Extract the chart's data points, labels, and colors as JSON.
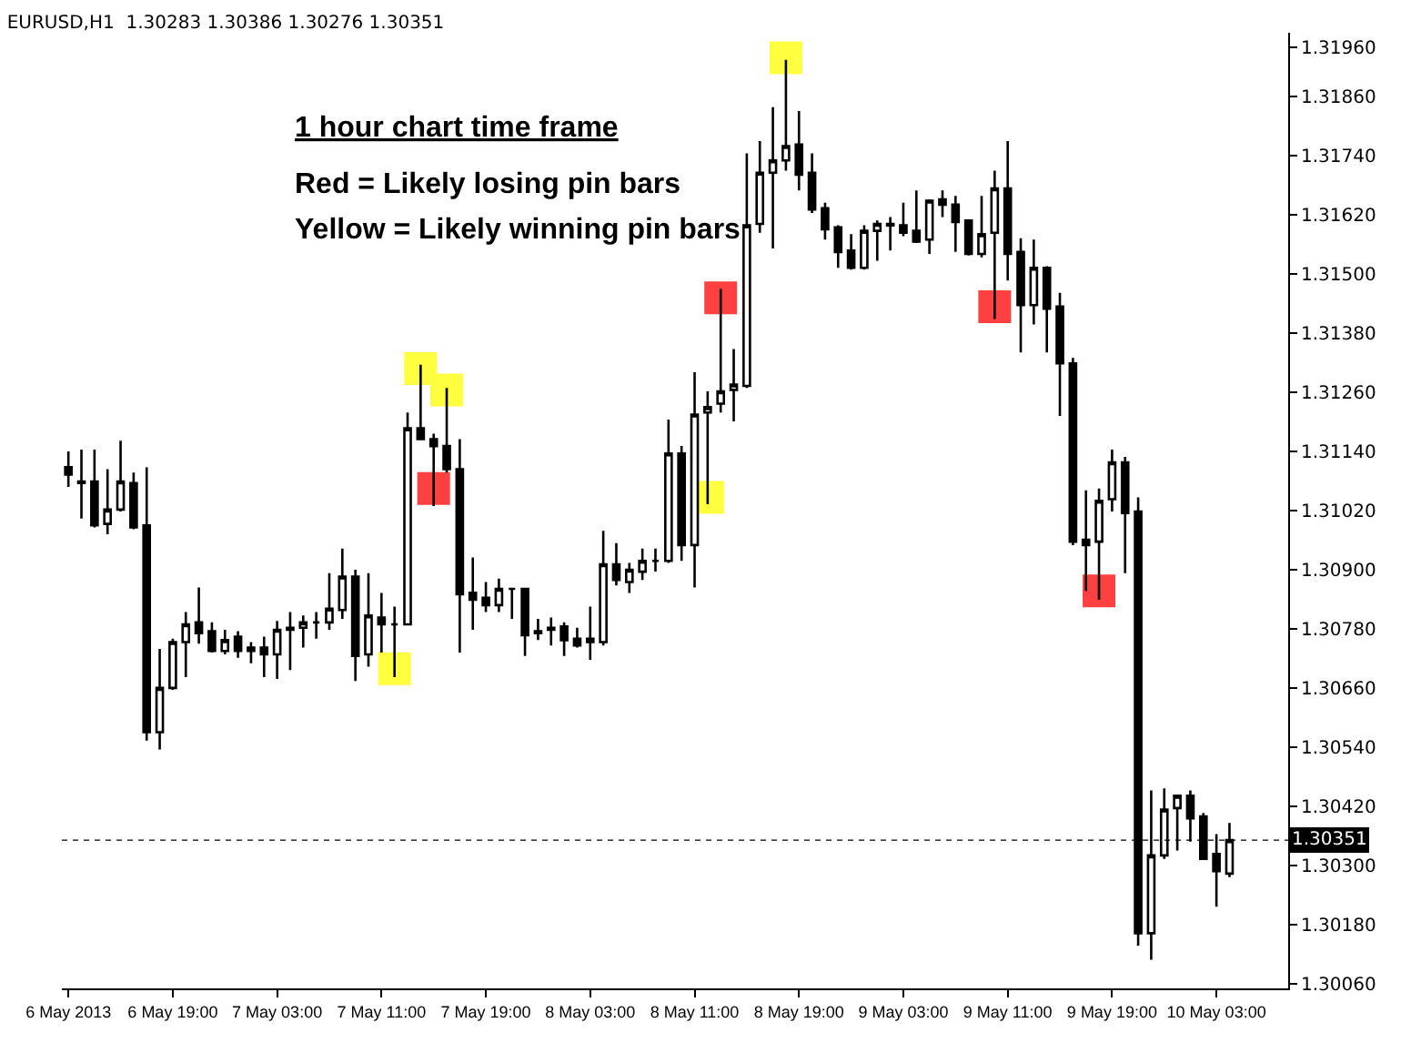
{
  "chart_data": {
    "type": "candlestick",
    "title": "EURUSD,H1  1.30283 1.30386 1.30276 1.30351",
    "annotations": [
      "1 hour chart time frame",
      "Red = Likely losing pin bars",
      "Yellow = Likely winning pin bars"
    ],
    "x": [
      "2013-05-06T11:00",
      "2013-05-06T12:00",
      "2013-05-06T13:00",
      "2013-05-06T14:00",
      "2013-05-06T15:00",
      "2013-05-06T16:00",
      "2013-05-06T17:00",
      "2013-05-06T18:00",
      "2013-05-06T19:00",
      "2013-05-06T20:00",
      "2013-05-06T21:00",
      "2013-05-06T22:00",
      "2013-05-06T23:00",
      "2013-05-07T00:00",
      "2013-05-07T01:00",
      "2013-05-07T02:00",
      "2013-05-07T03:00",
      "2013-05-07T04:00",
      "2013-05-07T05:00",
      "2013-05-07T06:00",
      "2013-05-07T07:00",
      "2013-05-07T08:00",
      "2013-05-07T09:00",
      "2013-05-07T10:00",
      "2013-05-07T11:00",
      "2013-05-07T12:00",
      "2013-05-07T13:00",
      "2013-05-07T14:00",
      "2013-05-07T15:00",
      "2013-05-07T16:00",
      "2013-05-07T17:00",
      "2013-05-07T18:00",
      "2013-05-07T19:00",
      "2013-05-07T20:00",
      "2013-05-07T21:00",
      "2013-05-07T22:00",
      "2013-05-07T23:00",
      "2013-05-08T00:00",
      "2013-05-08T01:00",
      "2013-05-08T02:00",
      "2013-05-08T03:00",
      "2013-05-08T04:00",
      "2013-05-08T05:00",
      "2013-05-08T06:00",
      "2013-05-08T07:00",
      "2013-05-08T08:00",
      "2013-05-08T09:00",
      "2013-05-08T10:00",
      "2013-05-08T11:00",
      "2013-05-08T12:00",
      "2013-05-08T13:00",
      "2013-05-08T14:00",
      "2013-05-08T15:00",
      "2013-05-08T16:00",
      "2013-05-08T17:00",
      "2013-05-08T18:00",
      "2013-05-08T19:00",
      "2013-05-08T20:00",
      "2013-05-08T21:00",
      "2013-05-08T22:00",
      "2013-05-08T23:00",
      "2013-05-09T00:00",
      "2013-05-09T01:00",
      "2013-05-09T02:00",
      "2013-05-09T03:00",
      "2013-05-09T04:00",
      "2013-05-09T05:00",
      "2013-05-09T06:00",
      "2013-05-09T07:00",
      "2013-05-09T08:00",
      "2013-05-09T09:00",
      "2013-05-09T10:00",
      "2013-05-09T11:00",
      "2013-05-09T12:00",
      "2013-05-09T13:00",
      "2013-05-09T14:00",
      "2013-05-09T15:00",
      "2013-05-09T16:00",
      "2013-05-09T17:00",
      "2013-05-09T18:00",
      "2013-05-09T19:00",
      "2013-05-09T20:00",
      "2013-05-09T21:00",
      "2013-05-09T22:00",
      "2013-05-09T23:00",
      "2013-05-10T00:00",
      "2013-05-10T01:00",
      "2013-05-10T02:00",
      "2013-05-10T03:00",
      "2013-05-10T04:00"
    ],
    "ohlc": [
      [
        1.31108,
        1.3114,
        1.31068,
        1.31093
      ],
      [
        1.31079,
        1.31144,
        1.31004,
        1.31076
      ],
      [
        1.31079,
        1.31144,
        1.30986,
        1.3099
      ],
      [
        1.30993,
        1.31104,
        1.30972,
        1.31022
      ],
      [
        1.31022,
        1.31162,
        1.31018,
        1.31079
      ],
      [
        1.31076,
        1.31097,
        1.30982,
        1.30986
      ],
      [
        1.3099,
        1.31108,
        1.30553,
        1.3057
      ],
      [
        1.3057,
        1.30739,
        1.30535,
        1.3066
      ],
      [
        1.3066,
        1.3076,
        1.30656,
        1.30753
      ],
      [
        1.30753,
        1.30814,
        1.30682,
        1.30789
      ],
      [
        1.30793,
        1.30864,
        1.3075,
        1.30771
      ],
      [
        1.30775,
        1.30793,
        1.30732,
        1.30735
      ],
      [
        1.30735,
        1.30778,
        1.30728,
        1.30757
      ],
      [
        1.30764,
        1.30775,
        1.30721,
        1.30735
      ],
      [
        1.30735,
        1.30753,
        1.3071,
        1.30742
      ],
      [
        1.30742,
        1.30764,
        1.30682,
        1.30728
      ],
      [
        1.30728,
        1.30796,
        1.30678,
        1.30778
      ],
      [
        1.30782,
        1.30814,
        1.30696,
        1.30778
      ],
      [
        1.30782,
        1.30807,
        1.30742,
        1.30793
      ],
      [
        1.30793,
        1.30814,
        1.3076,
        1.30793
      ],
      [
        1.30793,
        1.30893,
        1.30778,
        1.30821
      ],
      [
        1.30818,
        1.30943,
        1.308,
        1.30886
      ],
      [
        1.30886,
        1.309,
        1.30674,
        1.30725
      ],
      [
        1.30728,
        1.30893,
        1.30703,
        1.30807
      ],
      [
        1.30803,
        1.30853,
        1.30732,
        1.30789
      ],
      [
        1.30789,
        1.30825,
        1.30682,
        1.30789
      ],
      [
        1.30789,
        1.31219,
        1.30789,
        1.31187
      ],
      [
        1.31187,
        1.31316,
        1.31165,
        1.31165
      ],
      [
        1.31165,
        1.31176,
        1.31029,
        1.31151
      ],
      [
        1.31151,
        1.31269,
        1.31097,
        1.31104
      ],
      [
        1.31104,
        1.31165,
        1.30732,
        1.3085
      ],
      [
        1.30853,
        1.30925,
        1.30778,
        1.30839
      ],
      [
        1.30843,
        1.30875,
        1.30814,
        1.30828
      ],
      [
        1.30828,
        1.30882,
        1.30814,
        1.30861
      ],
      [
        1.30861,
        1.30861,
        1.308,
        1.30861
      ],
      [
        1.30861,
        1.30861,
        1.30725,
        1.30767
      ],
      [
        1.30775,
        1.308,
        1.30757,
        1.30771
      ],
      [
        1.30782,
        1.30803,
        1.30746,
        1.30778
      ],
      [
        1.30785,
        1.30793,
        1.30725,
        1.30757
      ],
      [
        1.3076,
        1.30782,
        1.30742,
        1.30746
      ],
      [
        1.30753,
        1.30825,
        1.30717,
        1.3076
      ],
      [
        1.30753,
        1.30979,
        1.30746,
        1.30911
      ],
      [
        1.30911,
        1.30954,
        1.30868,
        1.30879
      ],
      [
        1.30875,
        1.30914,
        1.30853,
        1.309
      ],
      [
        1.30896,
        1.30943,
        1.30879,
        1.30918
      ],
      [
        1.30918,
        1.30943,
        1.30896,
        1.30918
      ],
      [
        1.30918,
        1.31205,
        1.30914,
        1.31136
      ],
      [
        1.31136,
        1.31151,
        1.30918,
        1.3095
      ],
      [
        1.3095,
        1.31301,
        1.30864,
        1.31215
      ],
      [
        1.31219,
        1.31262,
        1.31033,
        1.3123
      ],
      [
        1.31237,
        1.3147,
        1.31219,
        1.31262
      ],
      [
        1.31265,
        1.31348,
        1.31201,
        1.31276
      ],
      [
        1.31273,
        1.31745,
        1.31269,
        1.31599
      ],
      [
        1.31602,
        1.3177,
        1.31584,
        1.31706
      ],
      [
        1.31706,
        1.31839,
        1.31552,
        1.31731
      ],
      [
        1.31731,
        1.31935,
        1.3171,
        1.3176
      ],
      [
        1.31763,
        1.31831,
        1.3167,
        1.31702
      ],
      [
        1.31706,
        1.31745,
        1.31624,
        1.31631
      ],
      [
        1.31634,
        1.31645,
        1.3157,
        1.31591
      ],
      [
        1.31595,
        1.31599,
        1.31513,
        1.31545
      ],
      [
        1.31548,
        1.31581,
        1.31509,
        1.31513
      ],
      [
        1.31513,
        1.31599,
        1.31509,
        1.31588
      ],
      [
        1.31588,
        1.31609,
        1.31527,
        1.31602
      ],
      [
        1.31602,
        1.31616,
        1.31548,
        1.31599
      ],
      [
        1.31599,
        1.31645,
        1.31577,
        1.31584
      ],
      [
        1.31588,
        1.3167,
        1.31563,
        1.31566
      ],
      [
        1.3157,
        1.31652,
        1.31541,
        1.31649
      ],
      [
        1.31652,
        1.3167,
        1.31616,
        1.31641
      ],
      [
        1.31641,
        1.31659,
        1.31545,
        1.31606
      ],
      [
        1.31609,
        1.31609,
        1.31538,
        1.31541
      ],
      [
        1.31541,
        1.31659,
        1.31534,
        1.31581
      ],
      [
        1.31584,
        1.3171,
        1.31409,
        1.31674
      ],
      [
        1.31674,
        1.3177,
        1.31487,
        1.31541
      ],
      [
        1.31545,
        1.31573,
        1.31341,
        1.31437
      ],
      [
        1.31437,
        1.3157,
        1.31398,
        1.31513
      ],
      [
        1.31513,
        1.31516,
        1.31341,
        1.3143
      ],
      [
        1.31434,
        1.31462,
        1.31212,
        1.31319
      ],
      [
        1.31319,
        1.3133,
        1.3095,
        1.30957
      ],
      [
        1.30961,
        1.31061,
        1.30857,
        1.3095
      ],
      [
        1.30957,
        1.31065,
        1.30839,
        1.3104
      ],
      [
        1.31043,
        1.31144,
        1.31018,
        1.31118
      ],
      [
        1.31118,
        1.31129,
        1.30893,
        1.31015
      ],
      [
        1.31018,
        1.31047,
        1.30137,
        1.30162
      ],
      [
        1.30162,
        1.30452,
        1.30108,
        1.3032
      ],
      [
        1.3032,
        1.30456,
        1.30313,
        1.30413
      ],
      [
        1.30416,
        1.30441,
        1.3033,
        1.30441
      ],
      [
        1.30441,
        1.30452,
        1.30348,
        1.30395
      ],
      [
        1.30399,
        1.30406,
        1.30313,
        1.30313
      ],
      [
        1.30323,
        1.30363,
        1.30216,
        1.30288
      ],
      [
        1.30283,
        1.30386,
        1.30276,
        1.30351
      ]
    ],
    "series": [
      {
        "type": "scatter",
        "color": "#ffff40",
        "marker": "square",
        "x": [
          "2013-05-07T12:00",
          "2013-05-07T14:00",
          "2013-05-07T16:00",
          "2013-05-08T12:00",
          "2013-05-08T18:00"
        ],
        "values": [
          1.30699,
          1.31308,
          1.31265,
          1.31047,
          1.31939
        ]
      },
      {
        "type": "scatter",
        "color": "#ff4040",
        "marker": "square",
        "x": [
          "2013-05-07T15:00",
          "2013-05-08T13:00",
          "2013-05-09T10:00",
          "2013-05-09T18:00"
        ],
        "values": [
          1.31065,
          1.31452,
          1.31434,
          1.30857
        ]
      }
    ],
    "xlim": [
      "2013-05-06T10:30",
      "2013-05-10T08:30"
    ],
    "xticks": [
      {
        "value": "2013-05-06T11:00",
        "label": "6 May 2013"
      },
      {
        "value": "2013-05-06T19:00",
        "label": "6 May 19:00"
      },
      {
        "value": "2013-05-07T03:00",
        "label": "7 May 03:00"
      },
      {
        "value": "2013-05-07T11:00",
        "label": "7 May 11:00"
      },
      {
        "value": "2013-05-07T19:00",
        "label": "7 May 19:00"
      },
      {
        "value": "2013-05-08T03:00",
        "label": "8 May 03:00"
      },
      {
        "value": "2013-05-08T11:00",
        "label": "8 May 11:00"
      },
      {
        "value": "2013-05-08T19:00",
        "label": "8 May 19:00"
      },
      {
        "value": "2013-05-09T03:00",
        "label": "9 May 03:00"
      },
      {
        "value": "2013-05-09T11:00",
        "label": "9 May 11:00"
      },
      {
        "value": "2013-05-09T19:00",
        "label": "9 May 19:00"
      },
      {
        "value": "2013-05-10T03:00",
        "label": "10 May 03:00"
      }
    ],
    "ylim": [
      1.3005,
      1.3199
    ],
    "yticks": [
      {
        "value": 1.3006,
        "label": "1.30060"
      },
      {
        "value": 1.3018,
        "label": "1.30180"
      },
      {
        "value": 1.303,
        "label": "1.30300"
      },
      {
        "value": 1.3042,
        "label": "1.30420"
      },
      {
        "value": 1.3054,
        "label": "1.30540"
      },
      {
        "value": 1.3066,
        "label": "1.30660"
      },
      {
        "value": 1.3078,
        "label": "1.30780"
      },
      {
        "value": 1.309,
        "label": "1.30900"
      },
      {
        "value": 1.3102,
        "label": "1.31020"
      },
      {
        "value": 1.3114,
        "label": "1.31140"
      },
      {
        "value": 1.3126,
        "label": "1.31260"
      },
      {
        "value": 1.3138,
        "label": "1.31380"
      },
      {
        "value": 1.315,
        "label": "1.31500"
      },
      {
        "value": 1.3162,
        "label": "1.31620"
      },
      {
        "value": 1.3174,
        "label": "1.31740"
      },
      {
        "value": 1.3186,
        "label": "1.31860"
      },
      {
        "value": 1.3196,
        "label": "1.31960"
      }
    ],
    "ref_lines": [
      {
        "axis": "y",
        "value": 1.30351,
        "label": "1.30351",
        "color": "#000000",
        "line_style": "dotted"
      }
    ]
  }
}
